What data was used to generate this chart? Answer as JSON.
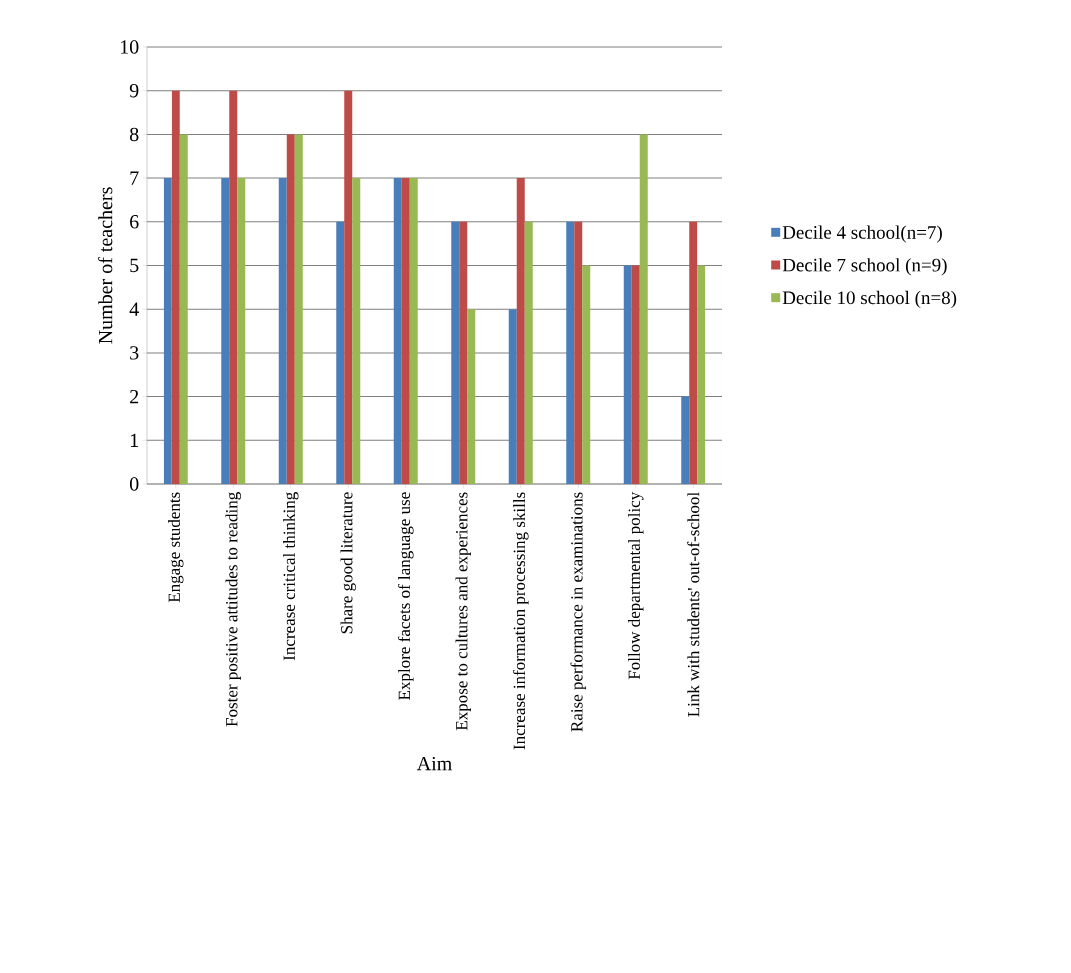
{
  "chart_data": {
    "type": "bar",
    "xlabel": "Aim",
    "ylabel": "Number of teachers",
    "categories": [
      "Engage students",
      "Foster positive attitudes to reading",
      "Increase critical thinking",
      "Share good literature",
      "Explore facets of language use",
      "Expose to cultures and experiences",
      "Increase information processing skills",
      "Raise performance in examinations",
      "Follow departmental policy",
      "Link with students' out-of-school"
    ],
    "series": [
      {
        "name": "Decile 4 school(n=7)",
        "color": "#4a7ebb",
        "values": [
          7,
          7,
          7,
          6,
          7,
          6,
          4,
          6,
          5,
          2
        ]
      },
      {
        "name": "Decile 7 school (n=9)",
        "color": "#be4b48",
        "values": [
          9,
          9,
          8,
          9,
          7,
          6,
          7,
          6,
          5,
          6
        ]
      },
      {
        "name": "Decile 10 school (n=8)",
        "color": "#98b954",
        "values": [
          8,
          7,
          8,
          7,
          7,
          4,
          6,
          5,
          8,
          5
        ]
      }
    ],
    "ylim": [
      0,
      10
    ],
    "yticks": [
      0,
      1,
      2,
      3,
      4,
      5,
      6,
      7,
      8,
      9,
      10
    ],
    "grid": "y",
    "legend": "right"
  }
}
